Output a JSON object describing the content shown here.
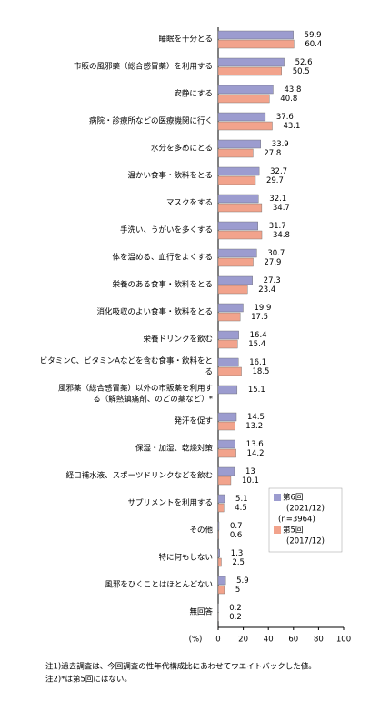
{
  "chart_data": {
    "type": "hbar",
    "categories": [
      [
        "睡眠を十分とる"
      ],
      [
        "市販の風邪薬（総合感冒薬）を利用する"
      ],
      [
        "安静にする"
      ],
      [
        "病院・診療所などの医療機関に行く"
      ],
      [
        "水分を多めにとる"
      ],
      [
        "温かい食事・飲料をとる"
      ],
      [
        "マスクをする"
      ],
      [
        "手洗い、うがいを多くする"
      ],
      [
        "体を温める、血行をよくする"
      ],
      [
        "栄養のある食事・飲料をとる"
      ],
      [
        "消化吸収のよい食事・飲料をとる"
      ],
      [
        "栄養ドリンクを飲む"
      ],
      [
        "ビタミンC、ビタミンAなどを含む食事・飲料をと",
        "る"
      ],
      [
        "風邪薬（総合感冒薬）以外の市販薬を利用す",
        "る（解熱鎮痛剤、のどの薬など）*"
      ],
      [
        "発汗を促す"
      ],
      [
        "保湿・加湿、乾燥対策"
      ],
      [
        "経口補水液、スポーツドリンクなどを飲む"
      ],
      [
        "サプリメントを利用する"
      ],
      [
        "その他"
      ],
      [
        "特に何もしない"
      ],
      [
        "風邪をひくことはほとんどない"
      ],
      [
        "無回答"
      ]
    ],
    "series": [
      {
        "name": "第6回",
        "period": "(2021/12)",
        "n": "(n=3964)",
        "color": "#9c9ccf",
        "values": [
          59.9,
          52.6,
          43.8,
          37.6,
          33.9,
          32.7,
          32.1,
          31.7,
          30.7,
          27.3,
          19.9,
          16.4,
          16.1,
          15.1,
          14.5,
          13.6,
          13.0,
          5.1,
          0.7,
          1.3,
          5.9,
          0.2
        ]
      },
      {
        "name": "第5回",
        "period": "(2017/12)",
        "color": "#f2a38c",
        "values": [
          60.4,
          50.5,
          40.8,
          43.1,
          27.8,
          29.7,
          34.7,
          34.8,
          27.9,
          23.4,
          17.5,
          15.4,
          18.5,
          null,
          13.2,
          14.2,
          10.1,
          4.5,
          0.6,
          2.5,
          5.0,
          0.2
        ]
      }
    ],
    "xlim": [
      0,
      100
    ],
    "xticks": [
      0,
      20,
      40,
      60,
      80,
      100
    ],
    "xlabel": "(%)",
    "notes": [
      "注1)過去調査は、今回調査の性年代構成比にあわせてウエイトバックした値。",
      "注2)*は第5回にはない。"
    ]
  }
}
